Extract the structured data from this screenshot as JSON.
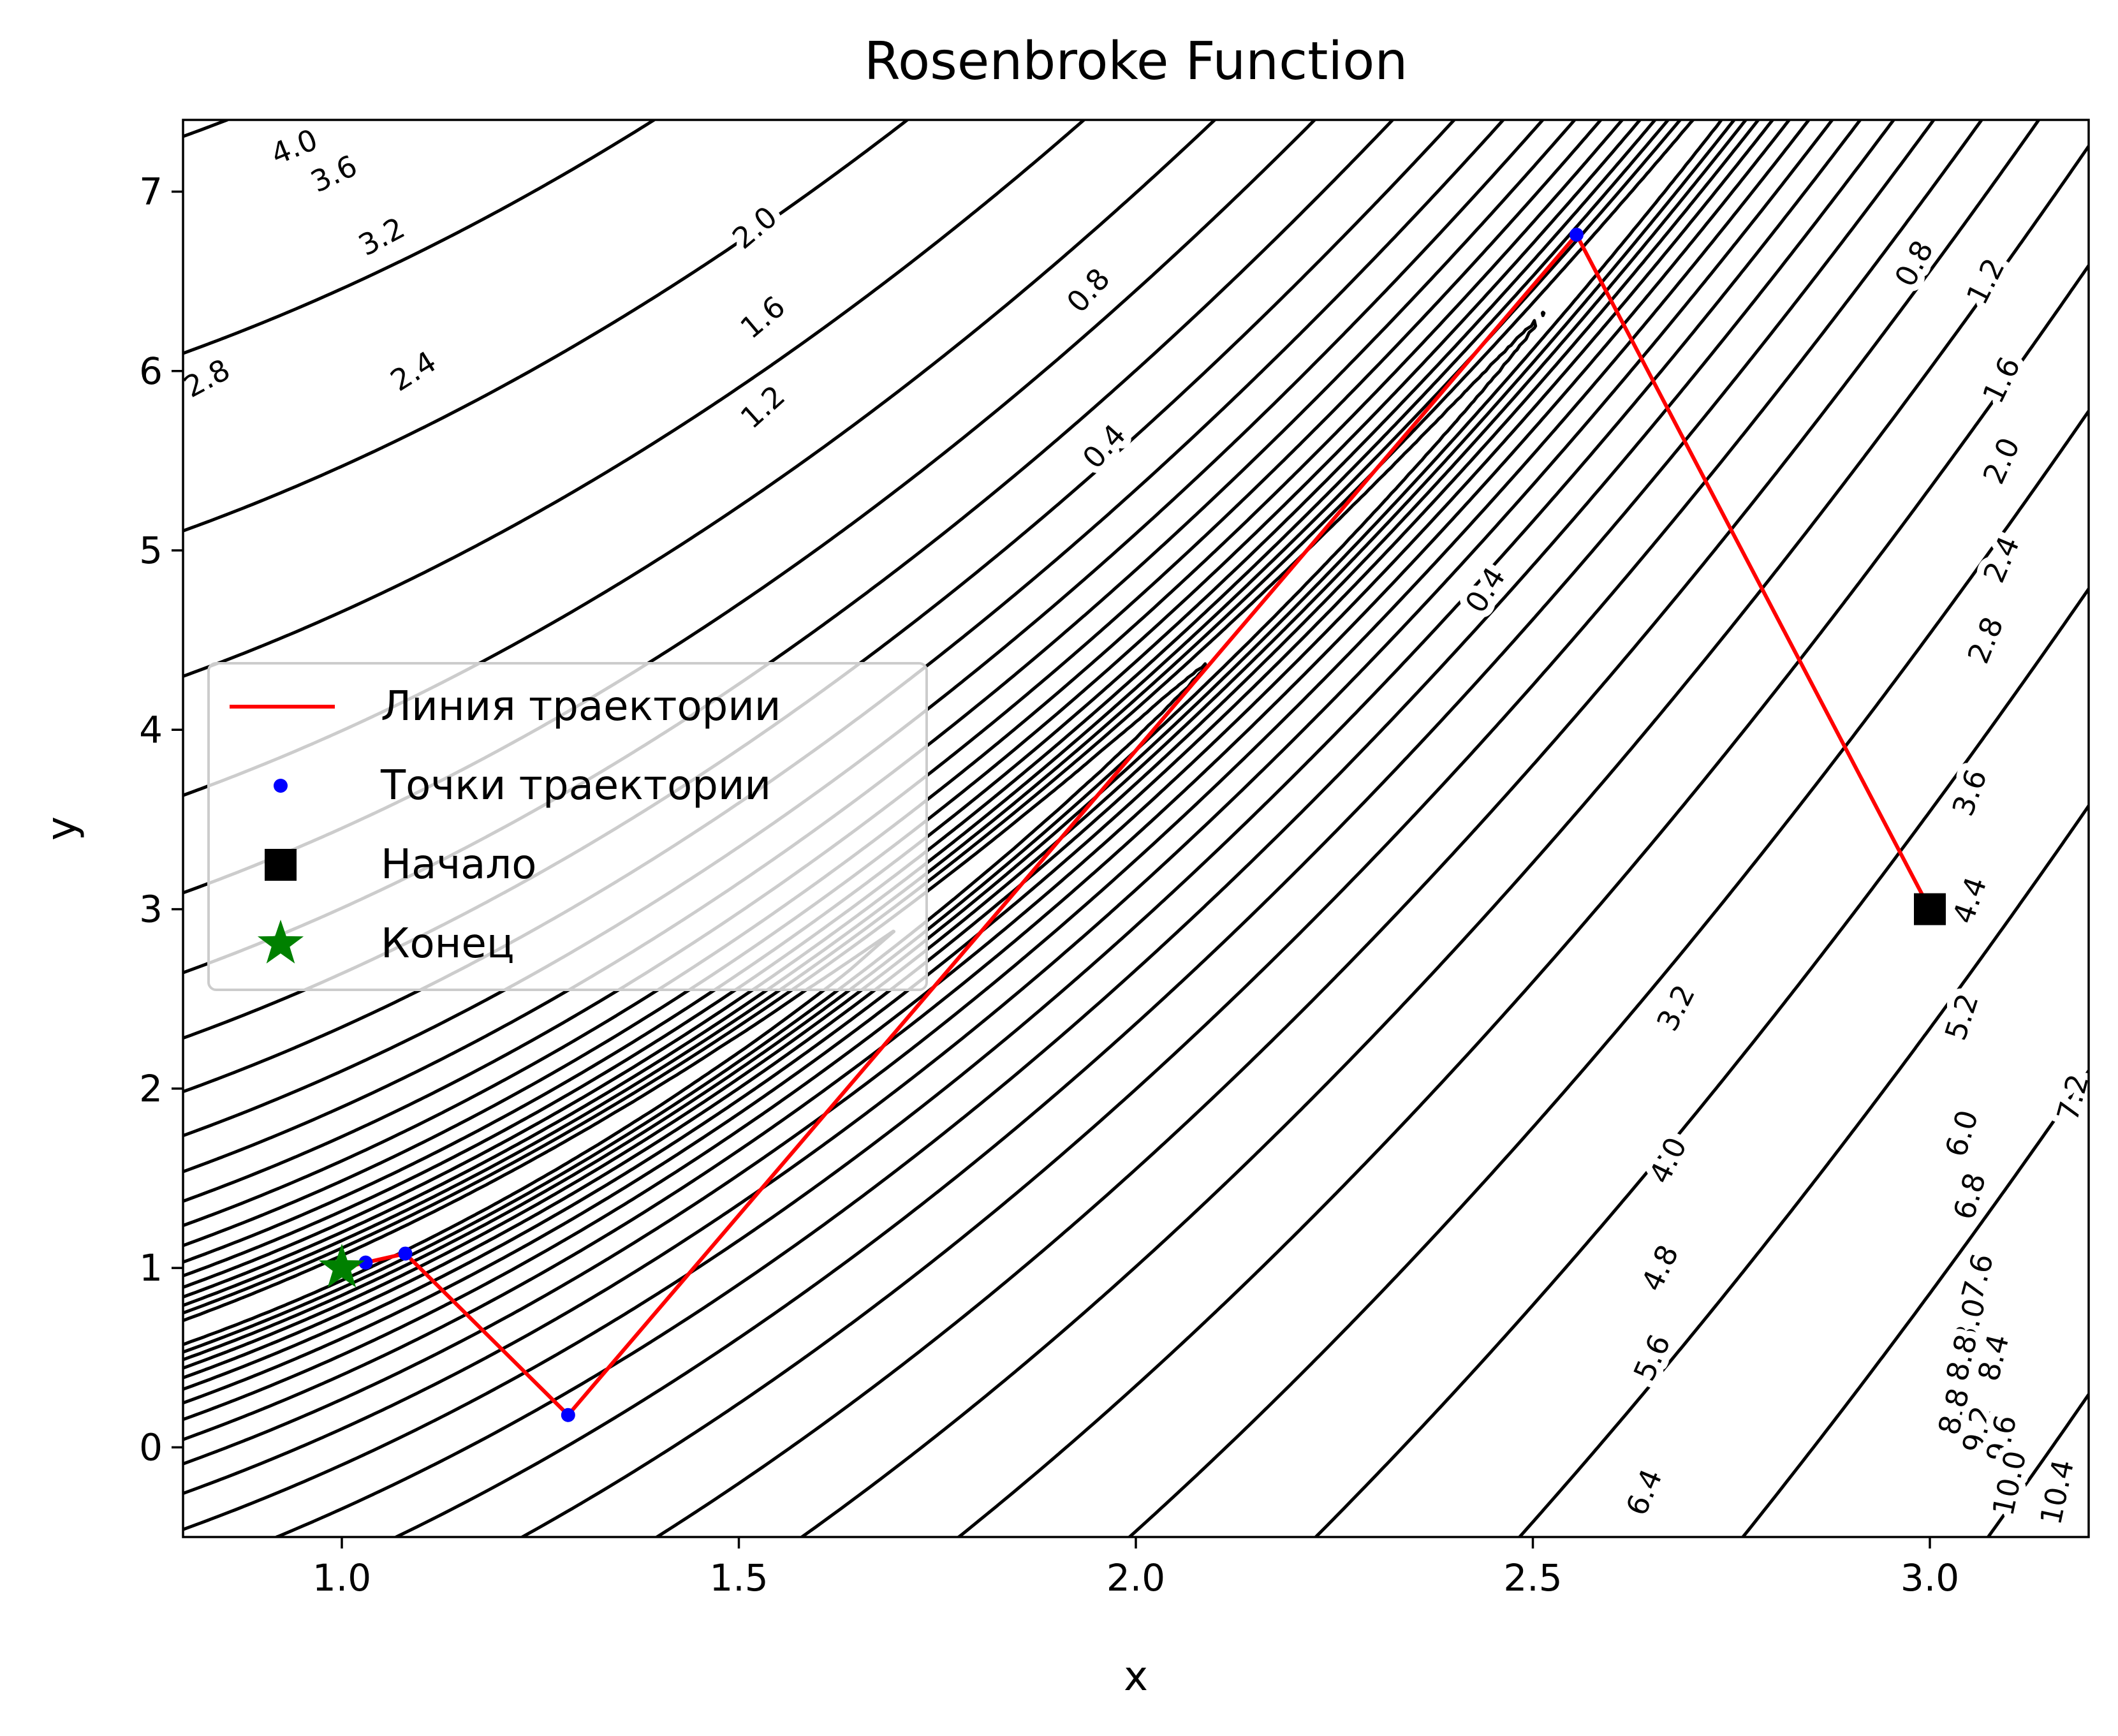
{
  "chart_data": {
    "type": "line",
    "title": "Rosenbroke Function",
    "xlabel": "x",
    "ylabel": "y",
    "xlim": [
      0.8,
      3.2
    ],
    "ylim": [
      -0.5,
      7.4
    ],
    "x_ticks": [
      1.0,
      1.5,
      2.0,
      2.5,
      3.0
    ],
    "x_tick_labels": [
      "1.0",
      "1.5",
      "2.0",
      "2.5",
      "3.0"
    ],
    "y_ticks": [
      0,
      1,
      2,
      3,
      4,
      5,
      6,
      7
    ],
    "y_tick_labels": [
      "0",
      "1",
      "2",
      "3",
      "4",
      "5",
      "6",
      "7"
    ],
    "contour": {
      "function": "log(1 + (1 - x)^2 + 100*(y - x^2)^2)",
      "levels": [
        0.4,
        0.8,
        1.2,
        1.6,
        2.0,
        2.4,
        2.8,
        3.2,
        3.6,
        4.0,
        4.4,
        4.8,
        5.2,
        5.6,
        6.0,
        6.4,
        6.8,
        7.2,
        7.6,
        8.0,
        8.4,
        8.8,
        9.2,
        9.6,
        10.0,
        10.4
      ],
      "color": "#000000",
      "labels": [
        {
          "text": "4.0",
          "x": 0.94,
          "y": 7.25,
          "angle": -22
        },
        {
          "text": "3.6",
          "x": 0.99,
          "y": 7.1,
          "angle": -25
        },
        {
          "text": "3.2",
          "x": 1.05,
          "y": 6.75,
          "angle": -28
        },
        {
          "text": "2.8",
          "x": 0.83,
          "y": 5.96,
          "angle": -28
        },
        {
          "text": "2.4",
          "x": 1.09,
          "y": 6.0,
          "angle": -32
        },
        {
          "text": "2.0",
          "x": 1.52,
          "y": 6.8,
          "angle": -40
        },
        {
          "text": "1.6",
          "x": 1.53,
          "y": 6.3,
          "angle": -40
        },
        {
          "text": "1.2",
          "x": 1.53,
          "y": 5.8,
          "angle": -42
        },
        {
          "text": "0.8",
          "x": 1.94,
          "y": 6.45,
          "angle": -48
        },
        {
          "text": "0.4",
          "x": 1.96,
          "y": 5.58,
          "angle": -48
        },
        {
          "text": "0.4",
          "x": 2.44,
          "y": 4.78,
          "angle": -58
        },
        {
          "text": "0.8",
          "x": 2.98,
          "y": 6.6,
          "angle": -62
        },
        {
          "text": "1.2",
          "x": 3.07,
          "y": 6.5,
          "angle": -63
        },
        {
          "text": "1.6",
          "x": 3.09,
          "y": 5.95,
          "angle": -64
        },
        {
          "text": "2.0",
          "x": 3.09,
          "y": 5.5,
          "angle": -66
        },
        {
          "text": "2.4",
          "x": 3.09,
          "y": 4.95,
          "angle": -67
        },
        {
          "text": "2.8",
          "x": 3.07,
          "y": 4.5,
          "angle": -68
        },
        {
          "text": "3.6",
          "x": 3.05,
          "y": 3.65,
          "angle": -70
        },
        {
          "text": "4.4",
          "x": 3.05,
          "y": 3.05,
          "angle": -71
        },
        {
          "text": "3.2",
          "x": 2.68,
          "y": 2.45,
          "angle": -63
        },
        {
          "text": "5.2",
          "x": 3.04,
          "y": 2.4,
          "angle": -72
        },
        {
          "text": "4.0",
          "x": 2.67,
          "y": 1.6,
          "angle": -64
        },
        {
          "text": "6.0",
          "x": 3.04,
          "y": 1.75,
          "angle": -73
        },
        {
          "text": "7.2",
          "x": 3.18,
          "y": 1.95,
          "angle": -75
        },
        {
          "text": "6.8",
          "x": 3.05,
          "y": 1.4,
          "angle": -74
        },
        {
          "text": "4.8",
          "x": 2.66,
          "y": 1.0,
          "angle": -65
        },
        {
          "text": "7.6",
          "x": 3.06,
          "y": 0.95,
          "angle": -75
        },
        {
          "text": "8.0",
          "x": 3.05,
          "y": 0.7,
          "angle": -75
        },
        {
          "text": "8.4",
          "x": 3.08,
          "y": 0.5,
          "angle": -76
        },
        {
          "text": "8.8",
          "x": 3.04,
          "y": 0.5,
          "angle": -76
        },
        {
          "text": "8.8",
          "x": 3.03,
          "y": 0.2,
          "angle": -76
        },
        {
          "text": "5.6",
          "x": 2.65,
          "y": 0.5,
          "angle": -66
        },
        {
          "text": "9.2",
          "x": 3.06,
          "y": 0.1,
          "angle": -77
        },
        {
          "text": "9.6",
          "x": 3.09,
          "y": 0.05,
          "angle": -77
        },
        {
          "text": "10.0",
          "x": 3.1,
          "y": -0.2,
          "angle": -78
        },
        {
          "text": "10.4",
          "x": 3.16,
          "y": -0.25,
          "angle": -78
        },
        {
          "text": "6.4",
          "x": 2.64,
          "y": -0.25,
          "angle": -67
        }
      ]
    },
    "series": [
      {
        "name": "Линия траектории",
        "kind": "line",
        "color": "#ff0000",
        "x": [
          3.0,
          2.555,
          1.285,
          1.08,
          1.03,
          1.0
        ],
        "y": [
          3.0,
          6.76,
          0.18,
          1.08,
          1.03,
          1.0
        ]
      },
      {
        "name": "Точки траектории",
        "kind": "points",
        "color": "#0000ff",
        "x": [
          2.555,
          1.285,
          1.08,
          1.03
        ],
        "y": [
          6.76,
          0.18,
          1.08,
          1.03
        ]
      },
      {
        "name": "Начало",
        "kind": "square",
        "color": "#000000",
        "x": [
          3.0
        ],
        "y": [
          3.0
        ]
      },
      {
        "name": "Конец",
        "kind": "star",
        "color": "#008000",
        "x": [
          1.0
        ],
        "y": [
          1.0
        ]
      }
    ],
    "legend": {
      "location": "center-left",
      "entries": [
        "Линия траектории",
        "Точки траектории",
        "Начало",
        "Конец"
      ]
    }
  }
}
